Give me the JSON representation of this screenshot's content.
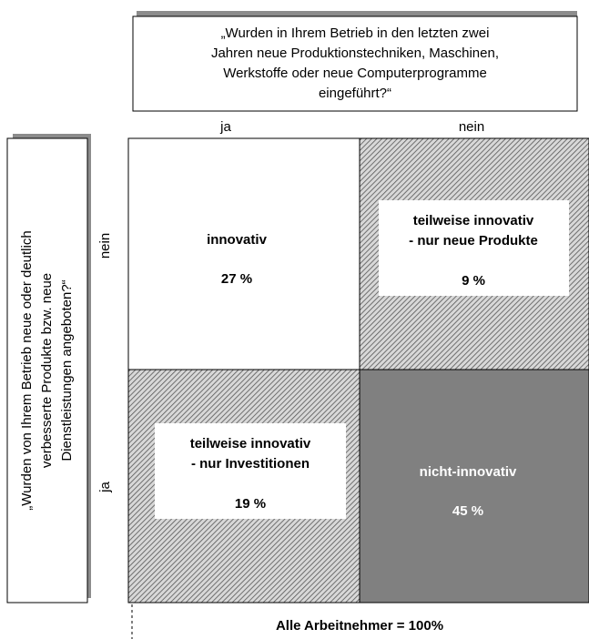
{
  "top_question": {
    "lines": [
      "„Wurden in Ihrem Betrieb in den letzten zwei",
      "Jahren neue Produktionstechniken, Maschinen,",
      "Werkstoffe oder neue Computerprogramme",
      "eingeführt?“"
    ]
  },
  "column_labels": [
    "ja",
    "nein"
  ],
  "side_question": {
    "lines": [
      "„Wurden von Ihrem Betrieb neue oder deutlich",
      "verbesserte Produkte bzw. neue",
      "Dienstleistungen angeboten?“"
    ]
  },
  "row_labels": [
    "nein",
    "ja"
  ],
  "cells": [
    {
      "label": [
        "innovativ"
      ],
      "value": "27 %"
    },
    {
      "label": [
        "teilweise innovativ",
        "- nur neue Produkte"
      ],
      "value": "9 %"
    },
    {
      "label": [
        "teilweise innovativ",
        "- nur Investitionen"
      ],
      "value": "19 %"
    },
    {
      "label": [
        "nicht-innovativ"
      ],
      "value": "45 %"
    }
  ],
  "footer": "Alle Arbeitnehmer = 100%"
}
